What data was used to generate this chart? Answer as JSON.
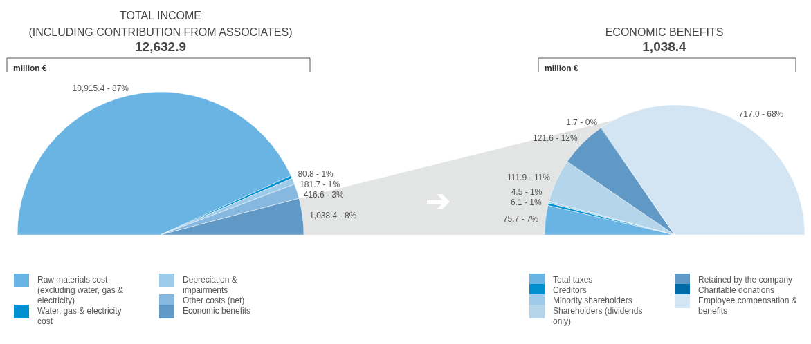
{
  "chart_data": [
    {
      "type": "pie",
      "title": "TOTAL INCOME\n(INCLUDING CONTRIBUTION FROM ASSOCIATES)",
      "subtitle": "12,632.9",
      "ylabel": "million €",
      "categories": [
        "Raw materials cost (excluding water, gas & electricity)",
        "Water, gas & electricity cost",
        "Depreciation & impairments",
        "Other costs (net)",
        "Economic benefits"
      ],
      "values": [
        10915.4,
        80.8,
        181.7,
        416.6,
        1038.4
      ],
      "colors": [
        "#6ab4e4",
        "#0090cf",
        "#9fcbea",
        "#86b8e0",
        "#6199c6"
      ],
      "value_labels": [
        "10,915.4 - 87%",
        "80.8 - 1%",
        "181.7 - 1%",
        "416.6 - 3%",
        "1,038.4 - 8%"
      ],
      "legend": "bottom"
    },
    {
      "type": "pie",
      "title": "ECONOMIC BENEFITS",
      "subtitle": "1,038.4",
      "ylabel": "million €",
      "categories": [
        "Total taxes",
        "Creditors",
        "Minority shareholders",
        "Shareholders (dividends only)",
        "Retained by the company",
        "Charitable donations",
        "Employee compensation & benefits"
      ],
      "values": [
        75.7,
        6.1,
        4.5,
        111.9,
        121.6,
        1.7,
        717.0
      ],
      "colors": [
        "#6ab4e4",
        "#0090cf",
        "#9fcbea",
        "#b5d5ea",
        "#6199c6",
        "#006aa8",
        "#d3e5f3"
      ],
      "value_labels": [
        "75.7 - 7%",
        "6.1 - 1%",
        "4.5 - 1%",
        "111.9 - 11%",
        "121.6 - 12%",
        "1.7 - 0%",
        "717.0 - 68%"
      ],
      "legend": "bottom"
    }
  ]
}
